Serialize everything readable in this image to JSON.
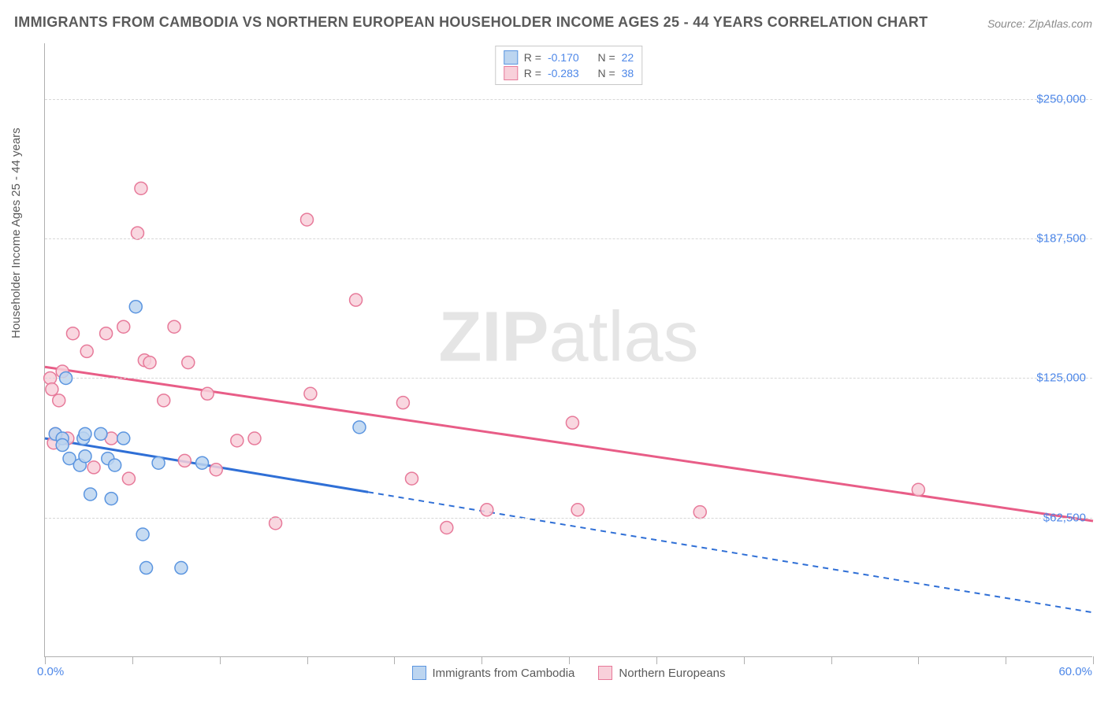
{
  "title": "IMMIGRANTS FROM CAMBODIA VS NORTHERN EUROPEAN HOUSEHOLDER INCOME AGES 25 - 44 YEARS CORRELATION CHART",
  "source": "Source: ZipAtlas.com",
  "watermark_bold": "ZIP",
  "watermark_light": "atlas",
  "y_axis_label": "Householder Income Ages 25 - 44 years",
  "chart": {
    "type": "scatter",
    "xlim": [
      0,
      60
    ],
    "ylim": [
      0,
      275000
    ],
    "x_left_label": "0.0%",
    "x_right_label": "60.0%",
    "xtick_positions": [
      0,
      5,
      10,
      15,
      20,
      25,
      30,
      35,
      40,
      45,
      50,
      55,
      60
    ],
    "y_gridlines": [
      62500,
      125000,
      187500,
      250000
    ],
    "y_tick_labels": [
      "$62,500",
      "$125,000",
      "$187,500",
      "$250,000"
    ],
    "grid_color": "#d7d7d7",
    "axis_color": "#b0b0b0",
    "background_color": "#ffffff",
    "tick_label_color": "#4d87e8",
    "marker_radius": 8,
    "series": [
      {
        "name": "Immigrants from Cambodia",
        "fill": "#bcd5f0",
        "stroke": "#5b95e0",
        "line_color": "#2f6fd6",
        "R": "-0.170",
        "N": "22",
        "trend": {
          "x1": 0,
          "y1": 98000,
          "x2": 60,
          "y2": 20000,
          "solid_until_x": 18.5
        },
        "points": [
          {
            "x": 0.6,
            "y": 100000
          },
          {
            "x": 1.0,
            "y": 98000
          },
          {
            "x": 1.0,
            "y": 95000
          },
          {
            "x": 1.2,
            "y": 125000
          },
          {
            "x": 1.4,
            "y": 89000
          },
          {
            "x": 2.0,
            "y": 86000
          },
          {
            "x": 2.2,
            "y": 98000
          },
          {
            "x": 2.3,
            "y": 100000
          },
          {
            "x": 2.3,
            "y": 90000
          },
          {
            "x": 2.6,
            "y": 73000
          },
          {
            "x": 3.2,
            "y": 100000
          },
          {
            "x": 3.6,
            "y": 89000
          },
          {
            "x": 3.8,
            "y": 71000
          },
          {
            "x": 4.0,
            "y": 86000
          },
          {
            "x": 4.5,
            "y": 98000
          },
          {
            "x": 5.2,
            "y": 157000
          },
          {
            "x": 5.6,
            "y": 55000
          },
          {
            "x": 5.8,
            "y": 40000
          },
          {
            "x": 6.5,
            "y": 87000
          },
          {
            "x": 7.8,
            "y": 40000
          },
          {
            "x": 9.0,
            "y": 87000
          },
          {
            "x": 18.0,
            "y": 103000
          }
        ]
      },
      {
        "name": "Northern Europeans",
        "fill": "#f8d0da",
        "stroke": "#e77a9a",
        "line_color": "#e85d87",
        "R": "-0.283",
        "N": "38",
        "trend": {
          "x1": 0,
          "y1": 130000,
          "x2": 60,
          "y2": 61000,
          "solid_until_x": 60
        },
        "points": [
          {
            "x": 0.3,
            "y": 125000
          },
          {
            "x": 0.4,
            "y": 120000
          },
          {
            "x": 0.5,
            "y": 96000
          },
          {
            "x": 0.6,
            "y": 100000
          },
          {
            "x": 0.8,
            "y": 115000
          },
          {
            "x": 1.0,
            "y": 128000
          },
          {
            "x": 1.3,
            "y": 98000
          },
          {
            "x": 1.6,
            "y": 145000
          },
          {
            "x": 2.4,
            "y": 137000
          },
          {
            "x": 2.8,
            "y": 85000
          },
          {
            "x": 3.5,
            "y": 145000
          },
          {
            "x": 3.8,
            "y": 98000
          },
          {
            "x": 4.5,
            "y": 148000
          },
          {
            "x": 4.8,
            "y": 80000
          },
          {
            "x": 5.3,
            "y": 190000
          },
          {
            "x": 5.5,
            "y": 210000
          },
          {
            "x": 5.7,
            "y": 133000
          },
          {
            "x": 6.0,
            "y": 132000
          },
          {
            "x": 6.8,
            "y": 115000
          },
          {
            "x": 7.4,
            "y": 148000
          },
          {
            "x": 8.0,
            "y": 88000
          },
          {
            "x": 8.2,
            "y": 132000
          },
          {
            "x": 9.3,
            "y": 118000
          },
          {
            "x": 9.8,
            "y": 84000
          },
          {
            "x": 11.0,
            "y": 97000
          },
          {
            "x": 12.0,
            "y": 98000
          },
          {
            "x": 13.2,
            "y": 60000
          },
          {
            "x": 15.0,
            "y": 196000
          },
          {
            "x": 15.2,
            "y": 118000
          },
          {
            "x": 17.8,
            "y": 160000
          },
          {
            "x": 20.5,
            "y": 114000
          },
          {
            "x": 21.0,
            "y": 80000
          },
          {
            "x": 23.0,
            "y": 58000
          },
          {
            "x": 25.3,
            "y": 66000
          },
          {
            "x": 30.2,
            "y": 105000
          },
          {
            "x": 30.5,
            "y": 66000
          },
          {
            "x": 37.5,
            "y": 65000
          },
          {
            "x": 50.0,
            "y": 75000
          }
        ]
      }
    ],
    "legend_top": [
      {
        "series_index": 0,
        "r_label": "R =",
        "n_label": "N ="
      },
      {
        "series_index": 1,
        "r_label": "R =",
        "n_label": "N ="
      }
    ],
    "legend_bottom": [
      {
        "series_index": 0
      },
      {
        "series_index": 1
      }
    ]
  }
}
